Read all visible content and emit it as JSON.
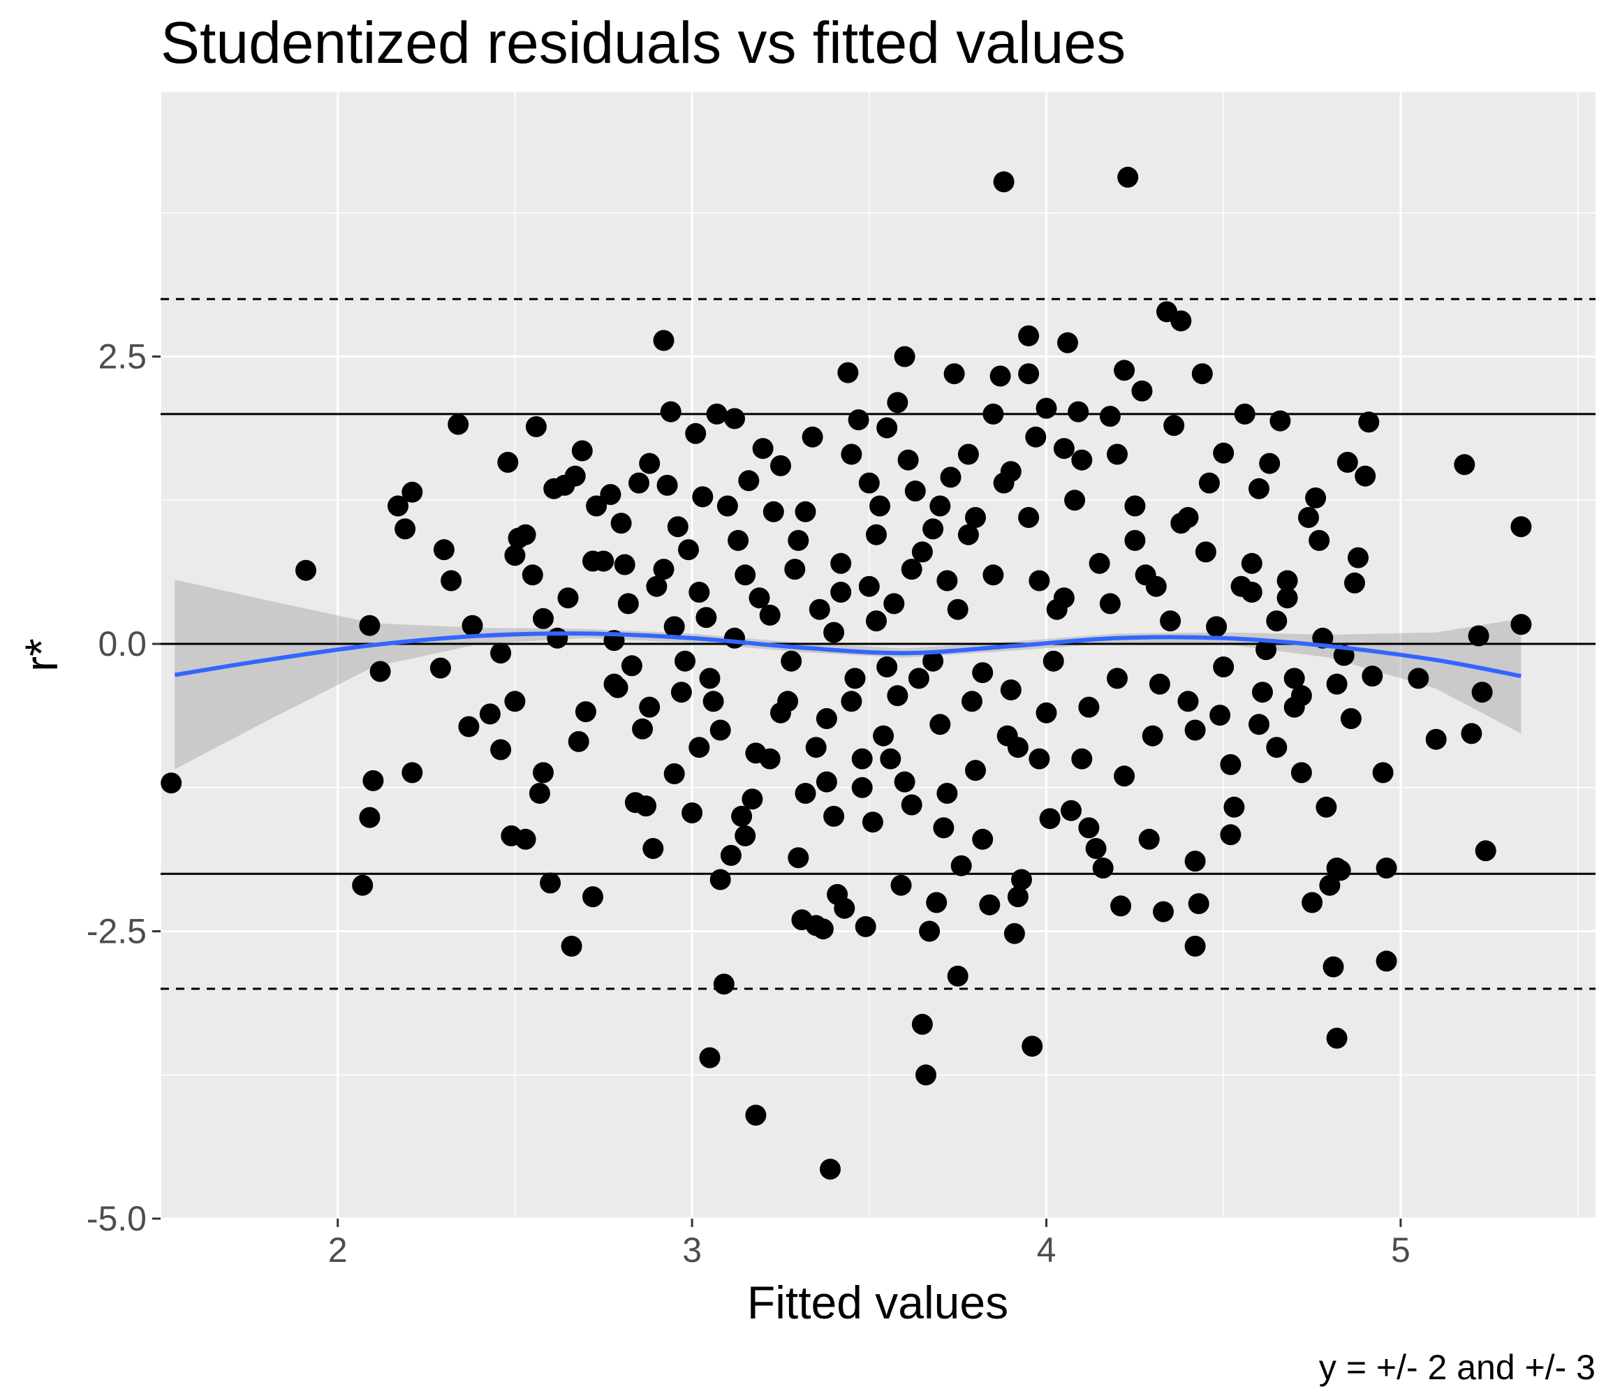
{
  "chart_data": {
    "type": "scatter",
    "title": "Studentized residuals vs fitted values",
    "xlabel": "Fitted values",
    "ylabel": "r*",
    "caption": "y = +/- 2 and +/- 3",
    "xlim": [
      1.5,
      5.55
    ],
    "ylim": [
      -5.0,
      4.8
    ],
    "x_ticks": [
      2,
      3,
      4,
      5
    ],
    "y_ticks": [
      -5.0,
      -2.5,
      0.0,
      2.5
    ],
    "y_tick_labels": [
      "-5.0",
      "-2.5",
      "0.0",
      "2.5"
    ],
    "grid": true,
    "colors": {
      "panel": "#ebebeb",
      "grid": "#ffffff",
      "points": "#000000",
      "smooth": "#3366ff",
      "ribbon": "#999999"
    },
    "reference_lines": [
      {
        "y": 0,
        "style": "solid"
      },
      {
        "y": 2,
        "style": "solid"
      },
      {
        "y": -2,
        "style": "solid"
      },
      {
        "y": 3,
        "style": "dashed"
      },
      {
        "y": -3,
        "style": "dashed"
      }
    ],
    "smooth": {
      "x": [
        1.54,
        1.8,
        2.1,
        2.4,
        2.7,
        3.0,
        3.3,
        3.6,
        3.9,
        4.2,
        4.5,
        4.8,
        5.1,
        5.34
      ],
      "y": [
        -0.27,
        -0.14,
        -0.01,
        0.07,
        0.09,
        0.05,
        -0.03,
        -0.08,
        -0.02,
        0.05,
        0.05,
        -0.02,
        -0.14,
        -0.28
      ],
      "upper": [
        0.56,
        0.38,
        0.18,
        0.14,
        0.13,
        0.09,
        0.01,
        -0.04,
        0.02,
        0.09,
        0.1,
        0.08,
        0.1,
        0.22
      ],
      "lower": [
        -1.09,
        -0.67,
        -0.2,
        0.0,
        0.05,
        0.01,
        -0.07,
        -0.12,
        -0.06,
        0.01,
        0.0,
        -0.12,
        -0.39,
        -0.78
      ]
    },
    "points": [
      [
        1.53,
        -1.21
      ],
      [
        1.91,
        0.64
      ],
      [
        2.07,
        -2.1
      ],
      [
        2.09,
        0.16
      ],
      [
        2.09,
        -1.51
      ],
      [
        2.1,
        -1.19
      ],
      [
        2.12,
        -0.24
      ],
      [
        2.17,
        1.2
      ],
      [
        2.19,
        1.0
      ],
      [
        2.21,
        1.32
      ],
      [
        2.21,
        -1.12
      ],
      [
        2.29,
        -0.21
      ],
      [
        2.3,
        0.82
      ],
      [
        2.32,
        0.55
      ],
      [
        2.34,
        1.91
      ],
      [
        2.37,
        -0.72
      ],
      [
        2.38,
        0.16
      ],
      [
        2.43,
        -0.61
      ],
      [
        2.46,
        -0.08
      ],
      [
        2.46,
        -0.92
      ],
      [
        2.48,
        1.58
      ],
      [
        2.49,
        -1.67
      ],
      [
        2.5,
        0.77
      ],
      [
        2.5,
        -0.5
      ],
      [
        2.51,
        0.92
      ],
      [
        2.53,
        -1.7
      ],
      [
        2.53,
        0.95
      ],
      [
        2.55,
        0.6
      ],
      [
        2.56,
        1.89
      ],
      [
        2.57,
        -1.3
      ],
      [
        2.58,
        0.22
      ],
      [
        2.58,
        -1.12
      ],
      [
        2.6,
        -2.08
      ],
      [
        2.61,
        1.35
      ],
      [
        2.62,
        0.05
      ],
      [
        2.64,
        1.38
      ],
      [
        2.65,
        0.4
      ],
      [
        2.66,
        -2.63
      ],
      [
        2.67,
        1.46
      ],
      [
        2.68,
        -0.85
      ],
      [
        2.69,
        1.68
      ],
      [
        2.7,
        -0.59
      ],
      [
        2.72,
        -2.2
      ],
      [
        2.73,
        1.2
      ],
      [
        2.75,
        0.72
      ],
      [
        2.77,
        1.3
      ],
      [
        2.78,
        0.03
      ],
      [
        2.79,
        -0.38
      ],
      [
        2.8,
        1.05
      ],
      [
        2.81,
        0.69
      ],
      [
        2.83,
        -0.19
      ],
      [
        2.84,
        -1.38
      ],
      [
        2.85,
        1.4
      ],
      [
        2.86,
        -0.74
      ],
      [
        2.87,
        -1.41
      ],
      [
        2.88,
        1.57
      ],
      [
        2.89,
        -1.78
      ],
      [
        2.9,
        0.5
      ],
      [
        2.92,
        2.64
      ],
      [
        2.93,
        1.38
      ],
      [
        2.94,
        2.02
      ],
      [
        2.95,
        -1.13
      ],
      [
        2.96,
        1.02
      ],
      [
        2.97,
        -0.42
      ],
      [
        2.99,
        0.82
      ],
      [
        3.0,
        -1.47
      ],
      [
        3.01,
        1.83
      ],
      [
        3.02,
        -0.9
      ],
      [
        3.03,
        1.28
      ],
      [
        3.04,
        0.23
      ],
      [
        3.05,
        -3.6
      ],
      [
        3.06,
        -0.5
      ],
      [
        3.07,
        2.0
      ],
      [
        3.08,
        -2.05
      ],
      [
        3.09,
        -2.96
      ],
      [
        3.1,
        1.2
      ],
      [
        3.11,
        -1.84
      ],
      [
        3.12,
        1.96
      ],
      [
        3.13,
        0.9
      ],
      [
        3.14,
        -1.5
      ],
      [
        3.15,
        -1.67
      ],
      [
        3.16,
        1.42
      ],
      [
        3.17,
        -1.35
      ],
      [
        3.18,
        -4.1
      ],
      [
        3.19,
        0.4
      ],
      [
        3.2,
        1.7
      ],
      [
        3.22,
        -1.0
      ],
      [
        3.23,
        1.15
      ],
      [
        3.25,
        1.55
      ],
      [
        3.27,
        -0.5
      ],
      [
        3.29,
        0.65
      ],
      [
        3.3,
        -1.86
      ],
      [
        3.31,
        -2.4
      ],
      [
        3.32,
        -1.3
      ],
      [
        3.34,
        1.8
      ],
      [
        3.35,
        -2.45
      ],
      [
        3.36,
        0.3
      ],
      [
        3.37,
        -2.48
      ],
      [
        3.38,
        -1.2
      ],
      [
        3.39,
        -4.57
      ],
      [
        3.4,
        -1.5
      ],
      [
        3.41,
        -2.18
      ],
      [
        3.42,
        0.7
      ],
      [
        3.43,
        -2.3
      ],
      [
        3.44,
        2.36
      ],
      [
        3.45,
        1.65
      ],
      [
        3.46,
        -0.3
      ],
      [
        3.47,
        1.95
      ],
      [
        3.48,
        -1.0
      ],
      [
        3.49,
        -2.46
      ],
      [
        3.5,
        1.4
      ],
      [
        3.51,
        -1.55
      ],
      [
        3.52,
        0.2
      ],
      [
        3.53,
        1.2
      ],
      [
        3.54,
        -0.8
      ],
      [
        3.55,
        1.88
      ],
      [
        3.56,
        -1.0
      ],
      [
        3.57,
        0.35
      ],
      [
        3.58,
        2.1
      ],
      [
        3.59,
        -2.1
      ],
      [
        3.6,
        2.5
      ],
      [
        3.61,
        1.6
      ],
      [
        3.62,
        -1.4
      ],
      [
        3.63,
        1.33
      ],
      [
        3.64,
        -0.3
      ],
      [
        3.65,
        -3.31
      ],
      [
        3.66,
        -3.75
      ],
      [
        3.67,
        -2.5
      ],
      [
        3.68,
        1.0
      ],
      [
        3.69,
        -2.25
      ],
      [
        3.7,
        1.2
      ],
      [
        3.71,
        -1.6
      ],
      [
        3.72,
        0.55
      ],
      [
        3.73,
        1.45
      ],
      [
        3.74,
        2.35
      ],
      [
        3.75,
        -2.89
      ],
      [
        3.76,
        -1.93
      ],
      [
        3.78,
        1.65
      ],
      [
        3.79,
        -0.5
      ],
      [
        3.8,
        1.1
      ],
      [
        3.82,
        -1.7
      ],
      [
        3.84,
        -2.27
      ],
      [
        3.85,
        2.0
      ],
      [
        3.87,
        2.33
      ],
      [
        3.88,
        4.02
      ],
      [
        3.89,
        -0.8
      ],
      [
        3.9,
        1.5
      ],
      [
        3.91,
        -2.52
      ],
      [
        3.92,
        -2.2
      ],
      [
        3.93,
        -2.05
      ],
      [
        3.95,
        2.35
      ],
      [
        3.95,
        2.68
      ],
      [
        3.96,
        -3.5
      ],
      [
        3.97,
        1.8
      ],
      [
        3.98,
        -1.0
      ],
      [
        4.0,
        2.05
      ],
      [
        4.01,
        -1.52
      ],
      [
        4.03,
        0.3
      ],
      [
        4.05,
        1.7
      ],
      [
        4.06,
        2.62
      ],
      [
        4.07,
        -1.45
      ],
      [
        4.09,
        2.02
      ],
      [
        4.1,
        1.6
      ],
      [
        4.12,
        -1.6
      ],
      [
        4.14,
        -1.78
      ],
      [
        4.16,
        -1.95
      ],
      [
        4.18,
        1.98
      ],
      [
        4.2,
        1.65
      ],
      [
        4.21,
        -2.28
      ],
      [
        4.22,
        2.38
      ],
      [
        4.23,
        4.06
      ],
      [
        4.25,
        1.2
      ],
      [
        4.27,
        2.2
      ],
      [
        4.29,
        -1.7
      ],
      [
        4.31,
        0.5
      ],
      [
        4.33,
        -2.33
      ],
      [
        4.34,
        2.89
      ],
      [
        4.36,
        1.9
      ],
      [
        4.38,
        2.81
      ],
      [
        4.4,
        1.1
      ],
      [
        4.42,
        -1.89
      ],
      [
        4.42,
        -2.63
      ],
      [
        4.43,
        -2.26
      ],
      [
        4.44,
        2.35
      ],
      [
        4.46,
        1.4
      ],
      [
        4.49,
        -0.62
      ],
      [
        4.5,
        1.66
      ],
      [
        4.52,
        -1.66
      ],
      [
        4.53,
        -1.42
      ],
      [
        4.56,
        2.0
      ],
      [
        4.58,
        0.7
      ],
      [
        4.6,
        1.35
      ],
      [
        4.61,
        -0.42
      ],
      [
        4.63,
        1.57
      ],
      [
        4.65,
        -0.9
      ],
      [
        4.66,
        1.94
      ],
      [
        4.68,
        0.4
      ],
      [
        4.7,
        -0.55
      ],
      [
        4.72,
        -1.12
      ],
      [
        4.74,
        1.1
      ],
      [
        4.75,
        -2.25
      ],
      [
        4.76,
        1.27
      ],
      [
        4.77,
        0.9
      ],
      [
        4.79,
        -1.42
      ],
      [
        4.8,
        -2.1
      ],
      [
        4.81,
        -2.81
      ],
      [
        4.82,
        -1.95
      ],
      [
        4.82,
        -3.43
      ],
      [
        4.83,
        -1.97
      ],
      [
        4.84,
        -0.1
      ],
      [
        4.85,
        1.58
      ],
      [
        4.86,
        -0.65
      ],
      [
        4.87,
        0.53
      ],
      [
        4.88,
        0.75
      ],
      [
        4.9,
        1.46
      ],
      [
        4.91,
        1.93
      ],
      [
        4.92,
        -0.28
      ],
      [
        4.95,
        -1.12
      ],
      [
        4.96,
        -1.95
      ],
      [
        4.96,
        -2.76
      ],
      [
        5.05,
        -0.3
      ],
      [
        5.1,
        -0.83
      ],
      [
        5.18,
        1.56
      ],
      [
        5.2,
        -0.78
      ],
      [
        5.22,
        0.07
      ],
      [
        5.23,
        -0.42
      ],
      [
        5.24,
        -1.8
      ],
      [
        5.34,
        0.17
      ],
      [
        5.34,
        1.02
      ],
      [
        2.72,
        0.72
      ],
      [
        2.95,
        0.15
      ],
      [
        3.05,
        -0.3
      ],
      [
        3.15,
        0.6
      ],
      [
        3.25,
        -0.6
      ],
      [
        3.3,
        0.9
      ],
      [
        3.35,
        -0.9
      ],
      [
        3.4,
        0.1
      ],
      [
        3.45,
        -0.5
      ],
      [
        3.5,
        0.5
      ],
      [
        3.55,
        -0.2
      ],
      [
        3.6,
        -1.2
      ],
      [
        3.65,
        0.8
      ],
      [
        3.7,
        -0.7
      ],
      [
        3.75,
        0.3
      ],
      [
        3.8,
        -1.1
      ],
      [
        3.85,
        0.6
      ],
      [
        3.9,
        -0.4
      ],
      [
        3.95,
        1.1
      ],
      [
        4.0,
        -0.6
      ],
      [
        4.05,
        0.4
      ],
      [
        4.1,
        -1.0
      ],
      [
        4.15,
        0.7
      ],
      [
        4.2,
        -0.3
      ],
      [
        4.25,
        0.9
      ],
      [
        4.3,
        -0.8
      ],
      [
        4.35,
        0.2
      ],
      [
        4.4,
        -0.5
      ],
      [
        4.45,
        0.8
      ],
      [
        4.5,
        -0.2
      ],
      [
        4.55,
        0.5
      ],
      [
        4.6,
        -0.7
      ],
      [
        4.65,
        0.2
      ],
      [
        4.7,
        -0.3
      ],
      [
        3.62,
        0.65
      ],
      [
        3.68,
        -0.15
      ],
      [
        3.72,
        -1.3
      ],
      [
        3.78,
        0.95
      ],
      [
        3.82,
        -0.25
      ],
      [
        3.88,
        1.4
      ],
      [
        3.92,
        -0.9
      ],
      [
        3.98,
        0.55
      ],
      [
        4.02,
        -0.15
      ],
      [
        4.08,
        1.25
      ],
      [
        4.12,
        -0.55
      ],
      [
        4.18,
        0.35
      ],
      [
        4.22,
        -1.15
      ],
      [
        4.28,
        0.6
      ],
      [
        4.32,
        -0.35
      ],
      [
        4.38,
        1.05
      ],
      [
        4.42,
        -0.75
      ],
      [
        3.58,
        -0.45
      ],
      [
        3.52,
        0.95
      ],
      [
        3.48,
        -1.25
      ],
      [
        3.42,
        0.45
      ],
      [
        3.38,
        -0.65
      ],
      [
        3.32,
        1.15
      ],
      [
        3.28,
        -0.15
      ],
      [
        3.22,
        0.25
      ],
      [
        3.18,
        -0.95
      ],
      [
        3.12,
        0.05
      ],
      [
        3.08,
        -0.75
      ],
      [
        3.02,
        0.45
      ],
      [
        2.98,
        -0.15
      ],
      [
        2.92,
        0.65
      ],
      [
        2.88,
        -0.55
      ],
      [
        2.82,
        0.35
      ],
      [
        2.78,
        -0.35
      ],
      [
        4.48,
        0.15
      ],
      [
        4.52,
        -1.05
      ],
      [
        4.58,
        0.45
      ],
      [
        4.62,
        -0.05
      ],
      [
        4.68,
        0.55
      ],
      [
        4.72,
        -0.45
      ],
      [
        4.78,
        0.05
      ],
      [
        4.82,
        -0.35
      ]
    ]
  }
}
